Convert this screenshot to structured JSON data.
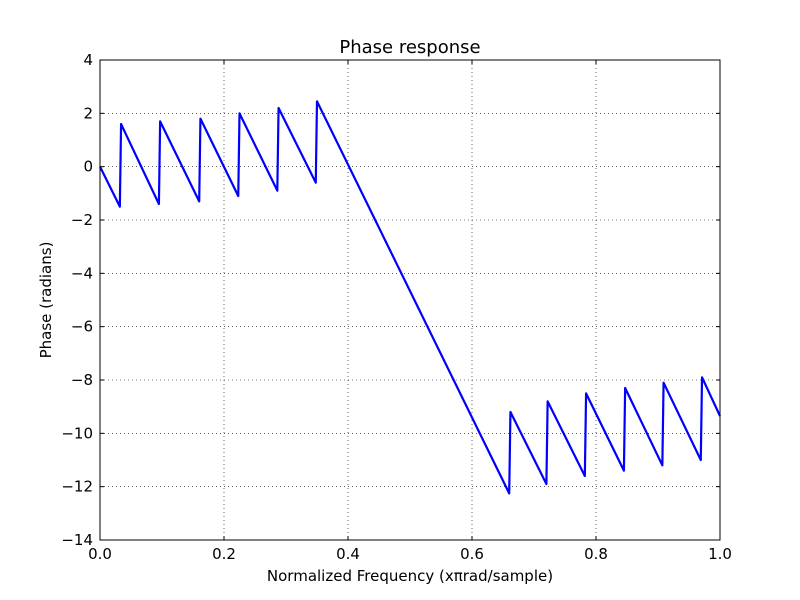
{
  "chart_data": {
    "type": "line",
    "title": "Phase response",
    "xlabel": "Normalized Frequency (xπrad/sample)",
    "ylabel": "Phase (radians)",
    "xlim": [
      0.0,
      1.0
    ],
    "ylim": [
      -14,
      4
    ],
    "x_ticks": [
      0.0,
      0.2,
      0.4,
      0.6,
      0.8,
      1.0
    ],
    "x_tick_labels": [
      "0.0",
      "0.2",
      "0.4",
      "0.6",
      "0.8",
      "1.0"
    ],
    "y_ticks": [
      4,
      2,
      0,
      -2,
      -4,
      -6,
      -8,
      -10,
      -12,
      -14
    ],
    "y_tick_labels": [
      "4",
      "2",
      "0",
      "−2",
      "−4",
      "−6",
      "−8",
      "−10",
      "−12",
      "−14"
    ],
    "grid": true,
    "grid_style": "dotted",
    "series": [
      {
        "color": "#0000ff",
        "x": [
          0.0,
          0.032,
          0.034,
          0.095,
          0.097,
          0.16,
          0.162,
          0.223,
          0.225,
          0.286,
          0.288,
          0.348,
          0.35,
          0.66,
          0.662,
          0.72,
          0.722,
          0.782,
          0.784,
          0.845,
          0.847,
          0.907,
          0.909,
          0.969,
          0.971,
          1.0
        ],
        "y": [
          0.0,
          -1.5,
          1.6,
          -1.4,
          1.7,
          -1.3,
          1.8,
          -1.1,
          2.0,
          -0.9,
          2.2,
          -0.6,
          2.45,
          -12.25,
          -9.2,
          -11.9,
          -8.8,
          -11.6,
          -8.5,
          -11.4,
          -8.3,
          -11.2,
          -8.1,
          -11.0,
          -7.9,
          -9.35
        ]
      }
    ]
  }
}
